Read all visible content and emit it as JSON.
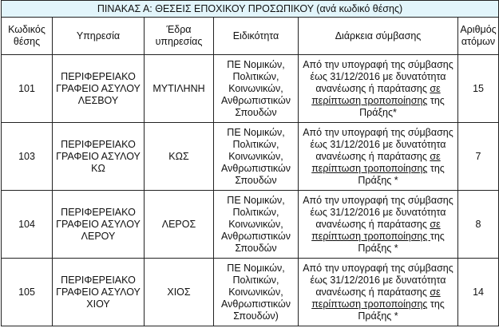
{
  "title": "ΠΙΝΑΚΑΣ Α: ΘΕΣΕΙΣ ΕΠΟΧΙΚΟΥ ΠΡΟΣΩΠΙΚΟΥ (ανά κωδικό θέσης)",
  "title_bg": "#e2f5fb",
  "headers": {
    "code": "Κωδικός θέσης",
    "service": "Υπηρεσία",
    "seat": "Έδρα υπηρεσίας",
    "specialty": "Ειδικότητα",
    "duration": "Διάρκεια σύμβασης",
    "count": "Αριθμός ατόμων"
  },
  "rows": [
    {
      "code": "101",
      "service": "ΠΕΡΙΦΕΡΕΙΑΚΟ ΓΡΑΦΕΙΟ ΑΣΥΛΟΥ ΛΕΣΒΟΥ",
      "seat": "ΜΥΤΙΛΗΝΗ",
      "specialty": "ΠΕ Νομικών, Πολιτικών, Κοινωνικών, Ανθρωπιστικών Σπουδών",
      "duration_a": "Από την υπογραφή της σύμβασης έως 31/12/2016 με δυνατότητα ανανέωσης ή παράτασης ",
      "duration_u": "σε περίπτωση τροποποίησης",
      "duration_b": " της Πράξης*",
      "count": "15"
    },
    {
      "code": "103",
      "service": "ΠΕΡΙΦΕΡΕΙΑΚΟ ΓΡΑΦΕΙΟ ΑΣΥΛΟΥ ΚΩ",
      "seat": "ΚΩΣ",
      "specialty": "ΠΕ Νομικών, Πολιτικών, Κοινωνικών, Ανθρωπιστικών Σπουδών",
      "duration_a": "Από την υπογραφή της σύμβασης έως 31/12/2016 με δυνατότητα ανανέωσης ή παράτασης ",
      "duration_u": "σε περίπτωση τροποποίησης",
      "duration_b": " της Πράξης *",
      "count": "7"
    },
    {
      "code": "104",
      "service": "ΠΕΡΙΦΕΡΕΙΑΚΟ ΓΡΑΦΕΙΟ ΑΣΥΛΟΥ ΛΕΡΟΥ",
      "seat": "ΛΕΡΟΣ",
      "specialty": "ΠΕ Νομικών, Πολιτικών, Κοινωνικών, Ανθρωπιστικών Σπουδών",
      "duration_a": "Από την υπογραφή της σύμβασης έως 31/12/2016 με δυνατότητα ανανέωσης ή παράτασης ",
      "duration_u": "σε περίπτωση τροποποίησης ",
      "duration_b": "της Πράξης *",
      "count": "8"
    },
    {
      "code": "105",
      "service": "ΠΕΡΙΦΕΡΕΙΑΚΟ ΓΡΑΦΕΙΟ ΑΣΥΛΟΥ ΧΙΟΥ",
      "seat": "ΧΙΟΣ",
      "specialty": "ΠΕ Νομικών, Πολιτικών, Κοινωνικών, Ανθρωπιστικών Σπουδών)",
      "duration_a": "Από την υπογραφή της σύμβασης έως 31/12/2016 με δυνατότητα ανανέωσης ή παράτασης ",
      "duration_u": "σε περίπτωση τροποποίησης",
      "duration_b": " της Πράξης *",
      "count": "14"
    }
  ]
}
